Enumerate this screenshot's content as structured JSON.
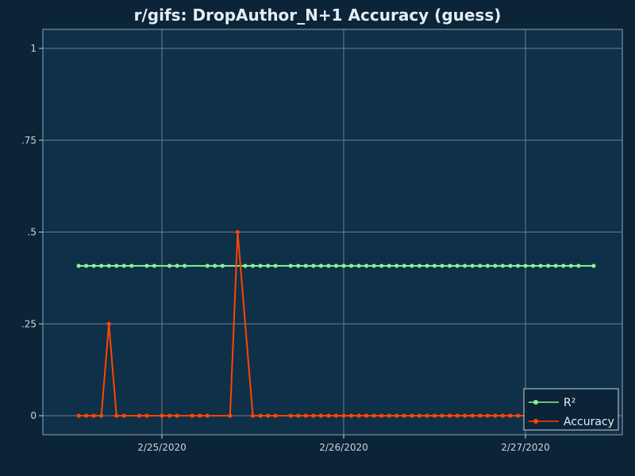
{
  "chart_data": {
    "type": "line",
    "title": "r/gifs: DropAuthor_N+1 Accuracy (guess)",
    "xlabel": "",
    "ylabel": "",
    "x_ticks": [
      "2/25/2020",
      "2/26/2020",
      "2/27/2020"
    ],
    "y_ticks": [
      "0",
      ".25",
      ".5",
      ".75",
      "1"
    ],
    "ylim": [
      0,
      1.05
    ],
    "grid": true,
    "legend_position": "bottom-right",
    "background_color": "#0b2438",
    "plot_background_color": "#0e3049",
    "series": [
      {
        "name": "R²",
        "color": "#90ee90",
        "x": [
          "2020-02-24 13:00",
          "2020-02-24 14:00",
          "2020-02-24 15:00",
          "2020-02-24 16:00",
          "2020-02-24 17:00",
          "2020-02-24 18:00",
          "2020-02-24 19:00",
          "2020-02-24 20:00",
          "2020-02-24 22:00",
          "2020-02-24 23:00",
          "2020-02-25 01:00",
          "2020-02-25 02:00",
          "2020-02-25 03:00",
          "2020-02-25 06:00",
          "2020-02-25 07:00",
          "2020-02-25 08:00",
          "2020-02-25 11:00",
          "2020-02-25 12:00",
          "2020-02-25 13:00",
          "2020-02-25 14:00",
          "2020-02-25 15:00",
          "2020-02-25 17:00",
          "2020-02-25 18:00",
          "2020-02-25 19:00",
          "2020-02-25 20:00",
          "2020-02-25 21:00",
          "2020-02-25 22:00",
          "2020-02-25 23:00",
          "2020-02-26 00:00",
          "2020-02-26 01:00",
          "2020-02-26 02:00",
          "2020-02-26 03:00",
          "2020-02-26 04:00",
          "2020-02-26 05:00",
          "2020-02-26 06:00",
          "2020-02-26 07:00",
          "2020-02-26 08:00",
          "2020-02-26 09:00",
          "2020-02-26 10:00",
          "2020-02-26 11:00",
          "2020-02-26 12:00",
          "2020-02-26 13:00",
          "2020-02-26 14:00",
          "2020-02-26 15:00",
          "2020-02-26 16:00",
          "2020-02-26 17:00",
          "2020-02-26 18:00",
          "2020-02-26 19:00",
          "2020-02-26 20:00",
          "2020-02-26 21:00",
          "2020-02-26 22:00",
          "2020-02-26 23:00",
          "2020-02-27 00:00",
          "2020-02-27 01:00",
          "2020-02-27 02:00",
          "2020-02-27 03:00",
          "2020-02-27 04:00",
          "2020-02-27 05:00",
          "2020-02-27 06:00",
          "2020-02-27 07:00",
          "2020-02-27 09:00"
        ],
        "values": [
          0.408,
          0.408,
          0.408,
          0.408,
          0.408,
          0.408,
          0.408,
          0.408,
          0.408,
          0.408,
          0.408,
          0.408,
          0.408,
          0.408,
          0.408,
          0.408,
          0.408,
          0.408,
          0.408,
          0.408,
          0.408,
          0.408,
          0.408,
          0.408,
          0.408,
          0.408,
          0.408,
          0.408,
          0.408,
          0.408,
          0.408,
          0.408,
          0.408,
          0.408,
          0.408,
          0.408,
          0.408,
          0.408,
          0.408,
          0.408,
          0.408,
          0.408,
          0.408,
          0.408,
          0.408,
          0.408,
          0.408,
          0.408,
          0.408,
          0.408,
          0.408,
          0.408,
          0.408,
          0.408,
          0.408,
          0.408,
          0.408,
          0.408,
          0.408,
          0.408,
          0.408
        ]
      },
      {
        "name": "Accuracy",
        "color": "#ff4500",
        "x": [
          "2020-02-24 13:00",
          "2020-02-24 14:00",
          "2020-02-24 15:00",
          "2020-02-24 16:00",
          "2020-02-24 17:00",
          "2020-02-24 18:00",
          "2020-02-24 19:00",
          "2020-02-24 21:00",
          "2020-02-24 22:00",
          "2020-02-25 00:00",
          "2020-02-25 01:00",
          "2020-02-25 02:00",
          "2020-02-25 04:00",
          "2020-02-25 05:00",
          "2020-02-25 06:00",
          "2020-02-25 09:00",
          "2020-02-25 10:00",
          "2020-02-25 12:00",
          "2020-02-25 13:00",
          "2020-02-25 14:00",
          "2020-02-25 15:00",
          "2020-02-25 17:00",
          "2020-02-25 18:00",
          "2020-02-25 19:00",
          "2020-02-25 20:00",
          "2020-02-25 21:00",
          "2020-02-25 22:00",
          "2020-02-25 23:00",
          "2020-02-26 00:00",
          "2020-02-26 01:00",
          "2020-02-26 02:00",
          "2020-02-26 03:00",
          "2020-02-26 04:00",
          "2020-02-26 05:00",
          "2020-02-26 06:00",
          "2020-02-26 07:00",
          "2020-02-26 08:00",
          "2020-02-26 09:00",
          "2020-02-26 10:00",
          "2020-02-26 11:00",
          "2020-02-26 12:00",
          "2020-02-26 13:00",
          "2020-02-26 14:00",
          "2020-02-26 15:00",
          "2020-02-26 16:00",
          "2020-02-26 17:00",
          "2020-02-26 18:00",
          "2020-02-26 19:00",
          "2020-02-26 20:00",
          "2020-02-26 21:00",
          "2020-02-26 22:00",
          "2020-02-26 23:00",
          "2020-02-27 00:00"
        ],
        "values": [
          0,
          0,
          0,
          0,
          0.25,
          0,
          0,
          0,
          0,
          0,
          0,
          0,
          0,
          0,
          0,
          0,
          0.5,
          0,
          0,
          0,
          0,
          0,
          0,
          0,
          0,
          0,
          0,
          0,
          0,
          0,
          0,
          0,
          0,
          0,
          0,
          0,
          0,
          0,
          0,
          0,
          0,
          0,
          0,
          0,
          0,
          0,
          0,
          0,
          0,
          0,
          0,
          0,
          0
        ]
      }
    ]
  }
}
